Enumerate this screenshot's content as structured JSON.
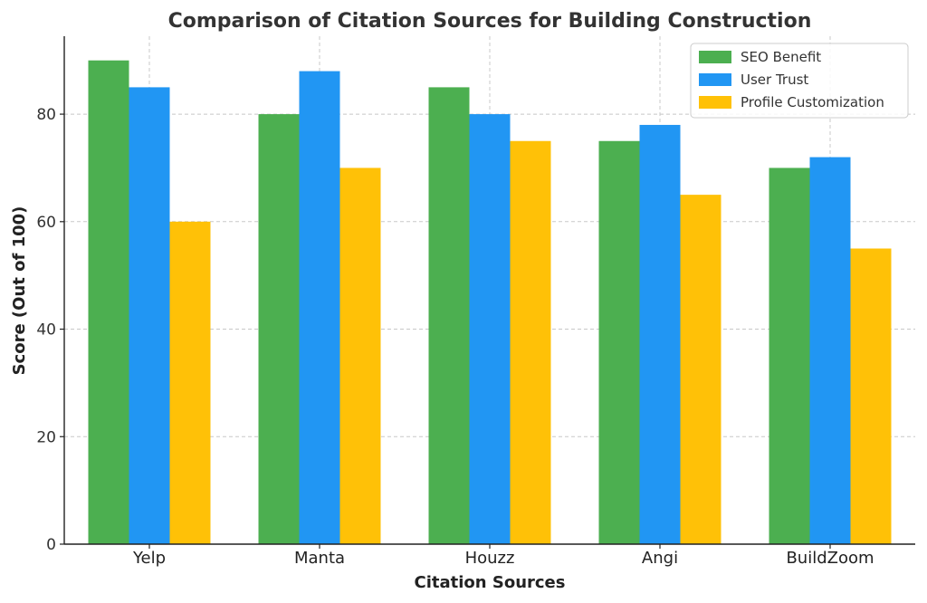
{
  "chart_data": {
    "type": "bar",
    "title": "Comparison of Citation Sources for Building Construction",
    "xlabel": "Citation Sources",
    "ylabel": "Score (Out of 100)",
    "categories": [
      "Yelp",
      "Manta",
      "Houzz",
      "Angi",
      "BuildZoom"
    ],
    "series": [
      {
        "name": "SEO Benefit",
        "color": "#4caf50",
        "values": [
          90,
          80,
          85,
          75,
          70
        ]
      },
      {
        "name": "User Trust",
        "color": "#2196f3",
        "values": [
          85,
          88,
          80,
          78,
          72
        ]
      },
      {
        "name": "Profile Customization",
        "color": "#ffc107",
        "values": [
          60,
          70,
          75,
          65,
          55
        ]
      }
    ],
    "ylim": [
      0,
      94.5
    ],
    "yticks": [
      0,
      20,
      40,
      60,
      80
    ],
    "grid": true,
    "legend_position": "top-right"
  }
}
